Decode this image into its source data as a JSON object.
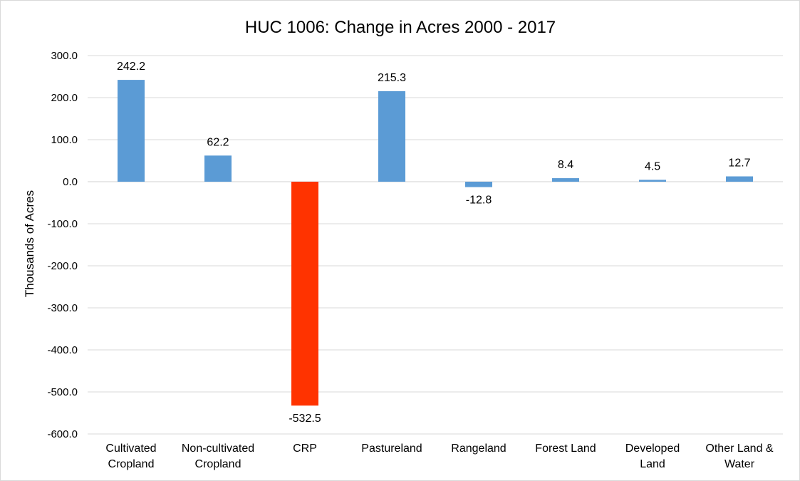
{
  "chart_data": {
    "type": "bar",
    "title": "HUC 1006: Change in Acres 2000 - 2017",
    "xlabel": "",
    "ylabel": "Thousands of Acres",
    "ylim": [
      -600,
      300
    ],
    "y_ticks": [
      300,
      200,
      100,
      0,
      -100,
      -200,
      -300,
      -400,
      -500,
      -600
    ],
    "y_tick_labels": [
      "300.0",
      "200.0",
      "100.0",
      "0.0",
      "-100.0",
      "-200.0",
      "-300.0",
      "-400.0",
      "-500.0",
      "-600.0"
    ],
    "grid": true,
    "legend": "none",
    "categories": [
      [
        "Cultivated",
        "Cropland"
      ],
      [
        "Non-cultivated",
        "Cropland"
      ],
      [
        "CRP"
      ],
      [
        "Pastureland"
      ],
      [
        "Rangeland"
      ],
      [
        "Forest Land"
      ],
      [
        "Developed",
        "Land"
      ],
      [
        "Other Land &",
        "Water"
      ]
    ],
    "values": [
      242.2,
      62.2,
      -532.5,
      215.3,
      -12.8,
      8.4,
      4.5,
      12.7
    ],
    "data_labels": [
      "242.2",
      "62.2",
      "-532.5",
      "215.3",
      "-12.8",
      "8.4",
      "4.5",
      "12.7"
    ],
    "colors": {
      "default": "#5b9bd5",
      "highlight": "#ff3300",
      "grid": "#d9d9d9",
      "text": "#000000"
    },
    "highlight_category_index": 2
  }
}
